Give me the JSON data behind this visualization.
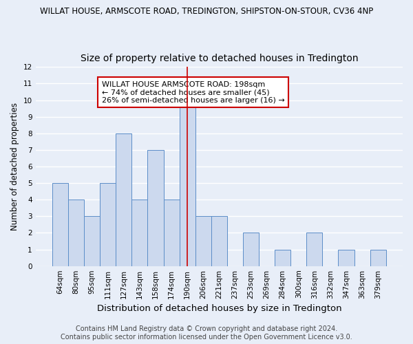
{
  "title": "WILLAT HOUSE, ARMSCOTE ROAD, TREDINGTON, SHIPSTON-ON-STOUR, CV36 4NP",
  "subtitle": "Size of property relative to detached houses in Tredington",
  "xlabel": "Distribution of detached houses by size in Tredington",
  "ylabel": "Number of detached properties",
  "categories": [
    "64sqm",
    "80sqm",
    "95sqm",
    "111sqm",
    "127sqm",
    "143sqm",
    "158sqm",
    "174sqm",
    "190sqm",
    "206sqm",
    "221sqm",
    "237sqm",
    "253sqm",
    "269sqm",
    "284sqm",
    "300sqm",
    "316sqm",
    "332sqm",
    "347sqm",
    "363sqm",
    "379sqm"
  ],
  "values": [
    5,
    4,
    3,
    5,
    8,
    4,
    7,
    4,
    10,
    3,
    3,
    0,
    2,
    0,
    1,
    0,
    2,
    0,
    1,
    0,
    1
  ],
  "highlight_index": 8,
  "bar_color": "#ccd9ee",
  "bar_edge_color": "#5b8dc8",
  "highlight_line_color": "#cc0000",
  "annotation_text": "WILLAT HOUSE ARMSCOTE ROAD: 198sqm\n← 74% of detached houses are smaller (45)\n26% of semi-detached houses are larger (16) →",
  "annotation_box_color": "#ffffff",
  "annotation_box_edge_color": "#cc0000",
  "ylim": [
    0,
    12
  ],
  "yticks": [
    0,
    1,
    2,
    3,
    4,
    5,
    6,
    7,
    8,
    9,
    10,
    11,
    12
  ],
  "footer_line1": "Contains HM Land Registry data © Crown copyright and database right 2024.",
  "footer_line2": "Contains public sector information licensed under the Open Government Licence v3.0.",
  "bg_color": "#e8eef8",
  "plot_bg_color": "#e8eef8",
  "grid_color": "#ffffff",
  "title_fontsize": 8.5,
  "subtitle_fontsize": 10,
  "xlabel_fontsize": 9.5,
  "ylabel_fontsize": 8.5,
  "tick_fontsize": 7.5,
  "footer_fontsize": 7,
  "annotation_fontsize": 8
}
